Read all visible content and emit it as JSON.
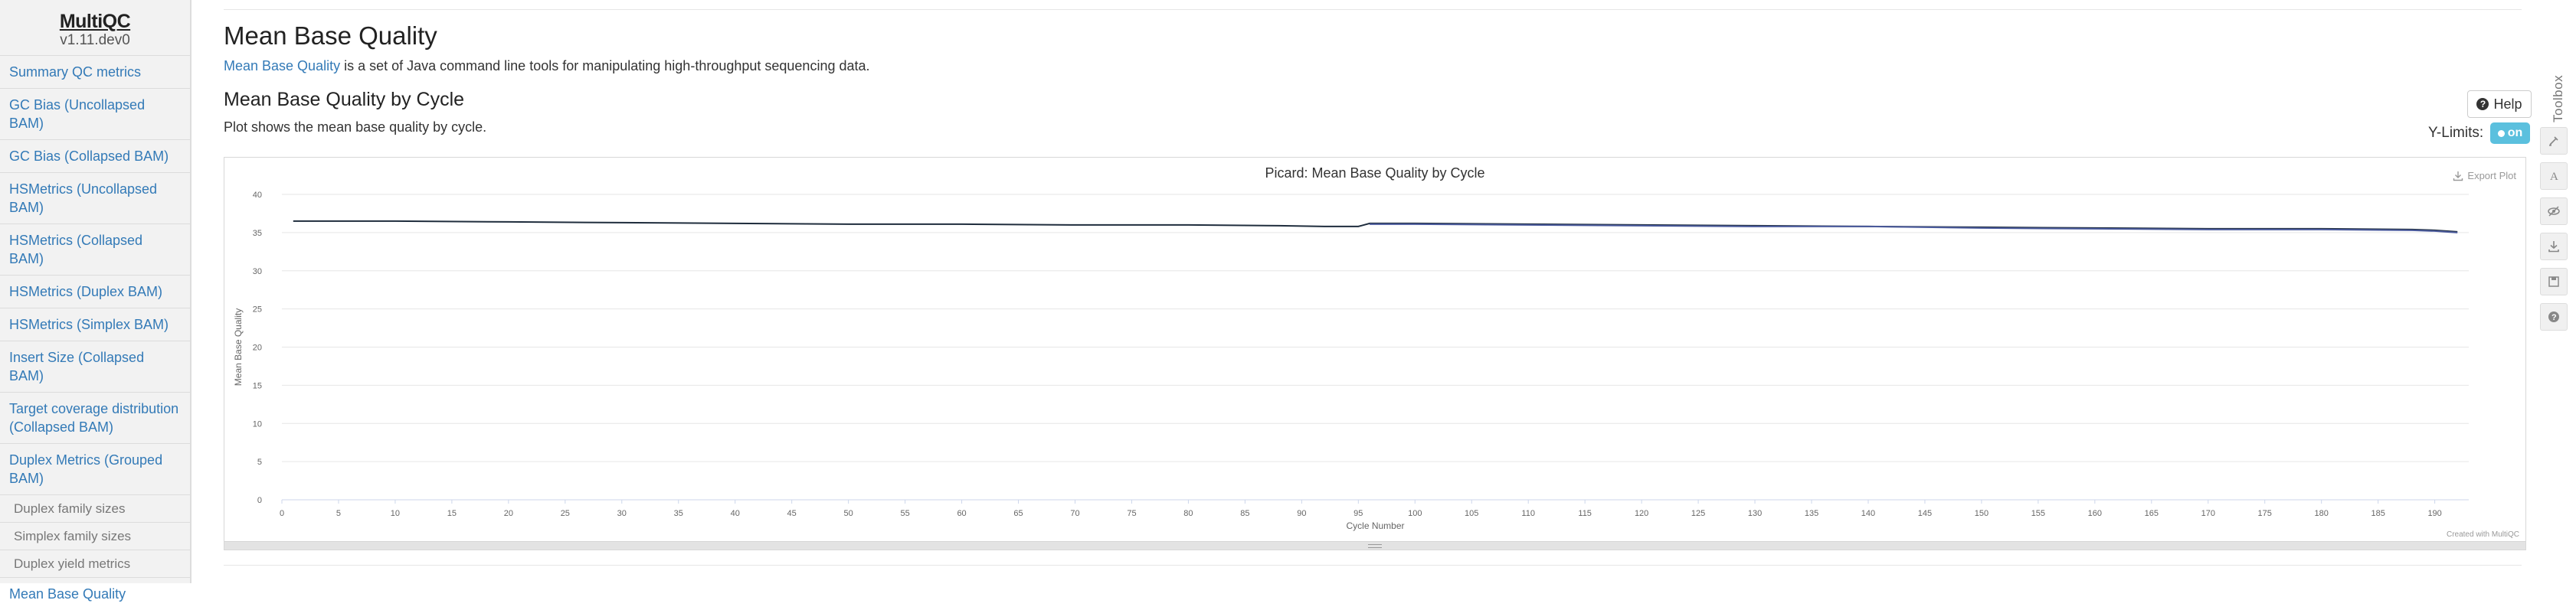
{
  "sidebar": {
    "logo_title": "MultiQC",
    "logo_version": "v1.11.dev0",
    "items": [
      {
        "label": "Summary QC metrics",
        "sub": false
      },
      {
        "label": "GC Bias (Uncollapsed BAM)",
        "sub": false
      },
      {
        "label": "GC Bias (Collapsed BAM)",
        "sub": false
      },
      {
        "label": "HSMetrics (Uncollapsed BAM)",
        "sub": false
      },
      {
        "label": "HSMetrics (Collapsed BAM)",
        "sub": false
      },
      {
        "label": "HSMetrics (Duplex BAM)",
        "sub": false
      },
      {
        "label": "HSMetrics (Simplex BAM)",
        "sub": false
      },
      {
        "label": "Insert Size (Collapsed BAM)",
        "sub": false
      },
      {
        "label": "Target coverage distribution (Collapsed BAM)",
        "sub": false
      },
      {
        "label": "Duplex Metrics (Grouped BAM)",
        "sub": false
      },
      {
        "label": "Duplex family sizes",
        "sub": true
      },
      {
        "label": "Simplex family sizes",
        "sub": true
      },
      {
        "label": "Duplex yield metrics",
        "sub": true
      },
      {
        "label": "Mean Base Quality",
        "sub": false
      }
    ]
  },
  "main": {
    "page_title": "Mean Base Quality",
    "intro_link": "Mean Base Quality",
    "intro_text": " is a set of Java command line tools for manipulating high-throughput sequencing data.",
    "section_title": "Mean Base Quality by Cycle",
    "section_desc": "Plot shows the mean base quality by cycle.",
    "help_label": "Help",
    "ylimits_label": "Y-Limits:",
    "ylimits_toggle": "on",
    "export_label": "Export Plot",
    "credit": "Created with MultiQC"
  },
  "toolbox": {
    "label": "Toolbox",
    "icons": [
      "highlight-icon",
      "rename-icon",
      "hide-icon",
      "export-icon",
      "save-icon",
      "help-icon"
    ]
  },
  "colors": {
    "link": "#337ab7",
    "toggle": "#5bc0de",
    "series_a": "#1f2d3d",
    "series_b": "#4a5a9c"
  },
  "chart_data": {
    "type": "line",
    "title": "Picard: Mean Base Quality by Cycle",
    "xlabel": "Cycle Number",
    "ylabel": "Mean Base Quality",
    "xlim": [
      0,
      193
    ],
    "ylim": [
      0,
      40
    ],
    "xticks": [
      0,
      5,
      10,
      15,
      20,
      25,
      30,
      35,
      40,
      45,
      50,
      55,
      60,
      65,
      70,
      75,
      80,
      85,
      90,
      95,
      100,
      105,
      110,
      115,
      120,
      125,
      130,
      135,
      140,
      145,
      150,
      155,
      160,
      165,
      170,
      175,
      180,
      185,
      190
    ],
    "yticks": [
      0,
      5,
      10,
      15,
      20,
      25,
      30,
      35,
      40
    ],
    "grid": true,
    "series": [
      {
        "name": "",
        "x": [
          1,
          10,
          20,
          30,
          40,
          50,
          60,
          70,
          80,
          88,
          92,
          94,
          95,
          96,
          100,
          110,
          120,
          130,
          140,
          150,
          160,
          170,
          180,
          188,
          190,
          192
        ],
        "y": [
          36.5,
          36.5,
          36.4,
          36.3,
          36.2,
          36.1,
          36.1,
          36.0,
          36.0,
          35.9,
          35.8,
          35.8,
          35.8,
          36.2,
          36.2,
          36.1,
          36.0,
          35.9,
          35.8,
          35.7,
          35.6,
          35.5,
          35.5,
          35.4,
          35.3,
          35.1
        ]
      },
      {
        "name": "",
        "x": [
          96,
          100,
          110,
          120,
          130,
          140,
          150,
          160,
          170,
          180,
          188,
          190,
          192
        ],
        "y": [
          36.1,
          36.1,
          36.0,
          35.9,
          35.8,
          35.8,
          35.6,
          35.5,
          35.4,
          35.4,
          35.3,
          35.2,
          35.0
        ]
      }
    ]
  }
}
